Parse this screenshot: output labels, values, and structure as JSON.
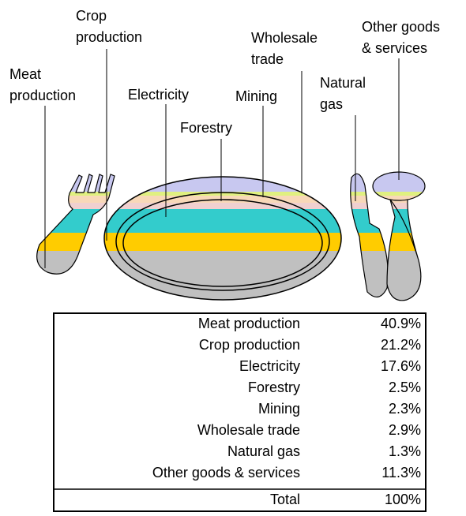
{
  "callouts": [
    {
      "lines": [
        "Meat",
        "production"
      ]
    },
    {
      "lines": [
        "Crop",
        "production"
      ]
    },
    {
      "lines": [
        "Electricity"
      ]
    },
    {
      "lines": [
        "Forestry"
      ]
    },
    {
      "lines": [
        "Mining"
      ]
    },
    {
      "lines": [
        "Wholesale",
        "trade"
      ]
    },
    {
      "lines": [
        "Natural",
        "gas"
      ]
    },
    {
      "lines": [
        "Other goods",
        "& services"
      ]
    }
  ],
  "table": {
    "rows": [
      [
        "Meat production",
        "40.9%"
      ],
      [
        "Crop production",
        "21.2%"
      ],
      [
        "Electricity",
        "17.6%"
      ],
      [
        "Forestry",
        "2.5%"
      ],
      [
        "Mining",
        "2.3%"
      ],
      [
        "Wholesale trade",
        "2.9%"
      ],
      [
        "Natural gas",
        "1.3%"
      ],
      [
        "Other goods & services",
        "11.3%"
      ]
    ],
    "total": [
      "Total",
      "100%"
    ]
  }
}
